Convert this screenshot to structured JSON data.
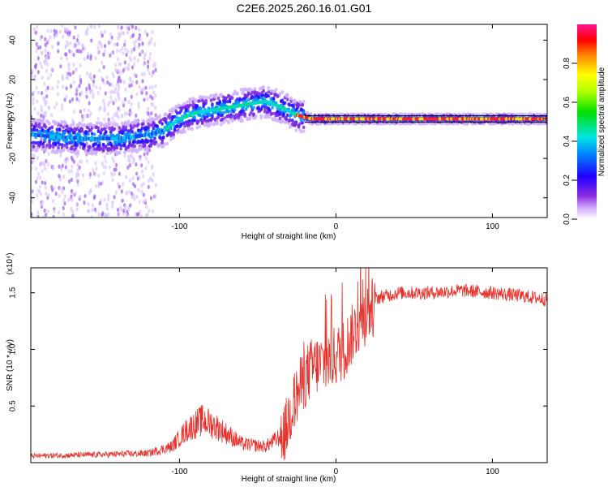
{
  "title": "C2E6.2025.260.16.01.G01",
  "chart_data": [
    {
      "type": "heatmap",
      "name": "spectrogram",
      "xlabel": "Height of straight line (km)",
      "ylabel": "Frequency (Hz)",
      "xlim": [
        -195,
        135
      ],
      "ylim": [
        -50,
        48
      ],
      "xticks": [
        -100,
        0,
        100
      ],
      "yticks": [
        -40,
        -20,
        0,
        20,
        40
      ],
      "colorbar": {
        "label": "Normalized spectral amplitude",
        "range": [
          0,
          1
        ],
        "ticks": [
          "0.0",
          "0.2",
          "0.4",
          "0.6",
          "0.8"
        ],
        "ticks_values": [
          0,
          0.2,
          0.4,
          0.6,
          0.8
        ]
      },
      "ridge": [
        {
          "x": -195,
          "y": -8
        },
        {
          "x": -180,
          "y": -9
        },
        {
          "x": -160,
          "y": -10
        },
        {
          "x": -140,
          "y": -10
        },
        {
          "x": -120,
          "y": -8
        },
        {
          "x": -110,
          "y": -6
        },
        {
          "x": -100,
          "y": 0
        },
        {
          "x": -90,
          "y": 3
        },
        {
          "x": -75,
          "y": 5
        },
        {
          "x": -60,
          "y": 7
        },
        {
          "x": -45,
          "y": 9
        },
        {
          "x": -35,
          "y": 6
        },
        {
          "x": -25,
          "y": 2
        },
        {
          "x": -15,
          "y": 0
        },
        {
          "x": 0,
          "y": 0
        },
        {
          "x": 50,
          "y": 0
        },
        {
          "x": 100,
          "y": 0
        },
        {
          "x": 135,
          "y": 0
        }
      ]
    },
    {
      "type": "line",
      "name": "snr",
      "xlabel": "Height of straight line (km)",
      "ylabel": "SNR (10 * v/v)",
      "scale_label": "(x10⁴)",
      "xlim": [
        -195,
        135
      ],
      "ylim": [
        0,
        1.72
      ],
      "xticks": [
        -100,
        0,
        100
      ],
      "yticks": [
        "0.5",
        "1.0",
        "1.5"
      ],
      "yticks_values": [
        0.5,
        1.0,
        1.5
      ],
      "color": "#e8302a",
      "envelope": [
        {
          "x": -195,
          "y": 0.05
        },
        {
          "x": -150,
          "y": 0.06
        },
        {
          "x": -120,
          "y": 0.07
        },
        {
          "x": -105,
          "y": 0.12
        },
        {
          "x": -95,
          "y": 0.25
        },
        {
          "x": -85,
          "y": 0.32
        },
        {
          "x": -78,
          "y": 0.28
        },
        {
          "x": -70,
          "y": 0.22
        },
        {
          "x": -60,
          "y": 0.14
        },
        {
          "x": -45,
          "y": 0.12
        },
        {
          "x": -35,
          "y": 0.2
        },
        {
          "x": -28,
          "y": 0.55
        },
        {
          "x": -20,
          "y": 0.8
        },
        {
          "x": -15,
          "y": 0.9
        },
        {
          "x": -5,
          "y": 0.95
        },
        {
          "x": 5,
          "y": 1.05
        },
        {
          "x": 15,
          "y": 1.3
        },
        {
          "x": 25,
          "y": 1.45
        },
        {
          "x": 40,
          "y": 1.5
        },
        {
          "x": 60,
          "y": 1.5
        },
        {
          "x": 80,
          "y": 1.52
        },
        {
          "x": 100,
          "y": 1.5
        },
        {
          "x": 120,
          "y": 1.47
        },
        {
          "x": 135,
          "y": 1.44
        }
      ]
    }
  ]
}
